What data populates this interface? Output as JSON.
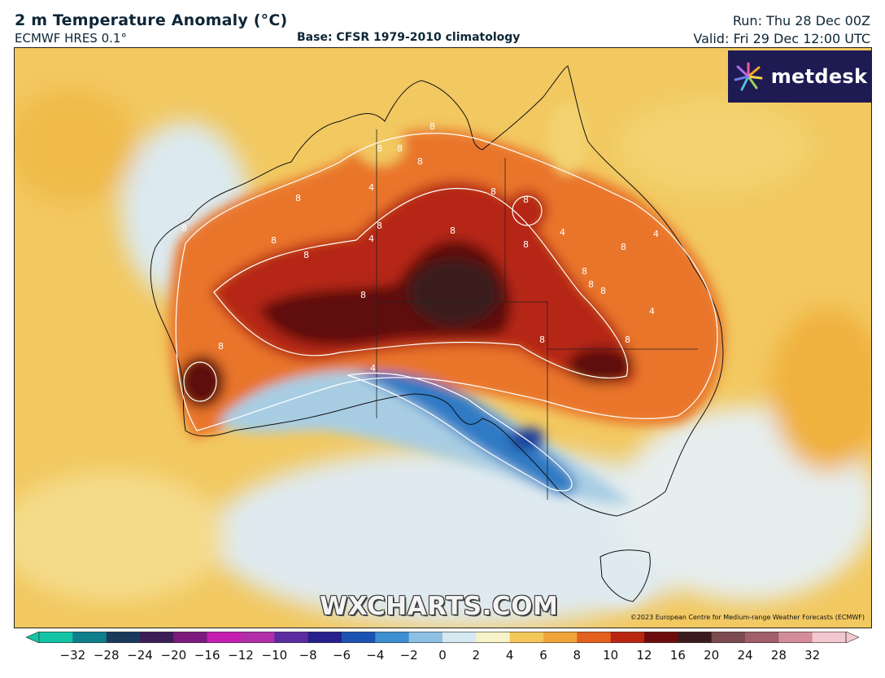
{
  "header": {
    "title": "2 m Temperature Anomaly (°C)",
    "model": "ECMWF HRES 0.1°",
    "base": "Base: CFSR 1979-2010 climatology",
    "run": "Run: Thu 28 Dec 00Z",
    "valid": "Valid: Fri 29 Dec 12:00 UTC"
  },
  "map": {
    "watermark": "WXCHARTS.COM",
    "copyright": "©2023 European Centre for Medium-range Weather Forecasts (ECMWF)",
    "logo_text": "metdesk",
    "contour_labels": [
      "4",
      "8",
      "8",
      "8",
      "8",
      "4",
      "8",
      "8",
      "8",
      "8",
      "8",
      "8",
      "8",
      "8",
      "8",
      "8",
      "4",
      "8",
      "8",
      "8",
      "4",
      "4",
      "8",
      "8",
      "8",
      "8",
      "4"
    ]
  },
  "colorbar": {
    "ticks": [
      "−32",
      "−28",
      "−24",
      "−20",
      "−16",
      "−12",
      "−10",
      "−8",
      "−6",
      "−4",
      "−2",
      "0",
      "2",
      "4",
      "6",
      "8",
      "10",
      "12",
      "16",
      "20",
      "24",
      "28",
      "32"
    ],
    "colors": [
      "#14c3a4",
      "#0f7f8c",
      "#1a3a5c",
      "#3b1e58",
      "#7c1a7e",
      "#c41fb1",
      "#b12ea9",
      "#5b2ca0",
      "#25208d",
      "#1d52b5",
      "#3d8fd1",
      "#8dc0e3",
      "#d6e8f1",
      "#f7f2c9",
      "#f3c757",
      "#f0a43a",
      "#e4601f",
      "#bb2612",
      "#6e0d0d",
      "#3c1b1e",
      "#7c4a4e",
      "#a05f69",
      "#d38d9a",
      "#f2c7d0"
    ]
  }
}
